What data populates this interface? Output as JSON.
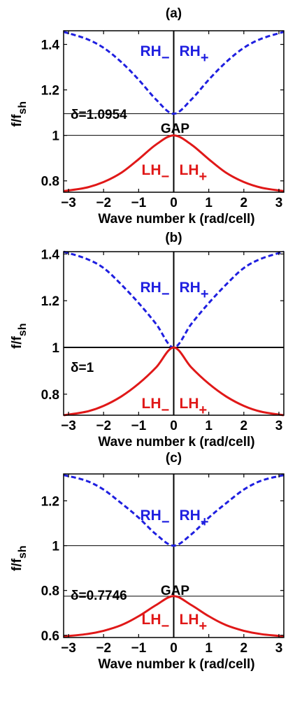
{
  "chart_data": [
    {
      "type": "line",
      "panel_label": "(a)",
      "xlabel": "Wave number k (rad/cell)",
      "ylabel": "f/f",
      "ylabel_sub": "sh",
      "xlim": [
        -3.14,
        3.14
      ],
      "ylim": [
        0.75,
        1.46
      ],
      "xticks": [
        -3,
        -2,
        -1,
        0,
        1,
        2,
        3
      ],
      "yticks": [
        0.8,
        1.0,
        1.2,
        1.4
      ],
      "ytick_labels": [
        "0.8",
        "1",
        "1.2",
        "1.4"
      ],
      "hlines": [
        1.0954,
        1.0
      ],
      "delta_label": "δ=1.0954",
      "gap_label": "GAP",
      "band_labels": {
        "rh_left": "RH",
        "rh_left_sub": "−",
        "rh_right": "RH",
        "rh_right_sub": "+",
        "lh_left": "LH",
        "lh_left_sub": "−",
        "lh_right": "LH",
        "lh_right_sub": "+"
      },
      "series": [
        {
          "name": "RH",
          "color": "#1f1fe0",
          "style": "dashed",
          "x": [
            -3.14,
            -2.5,
            -2.0,
            -1.5,
            -1.0,
            -0.5,
            0,
            0.5,
            1.0,
            1.5,
            2.0,
            2.5,
            3.14
          ],
          "y": [
            1.455,
            1.425,
            1.385,
            1.323,
            1.245,
            1.157,
            1.095,
            1.157,
            1.245,
            1.323,
            1.385,
            1.425,
            1.455
          ]
        },
        {
          "name": "LH",
          "color": "#e01818",
          "style": "solid",
          "x": [
            -3.14,
            -2.5,
            -2.0,
            -1.5,
            -1.0,
            -0.5,
            0,
            0.5,
            1.0,
            1.5,
            2.0,
            2.5,
            3.14
          ],
          "y": [
            0.755,
            0.77,
            0.795,
            0.835,
            0.895,
            0.96,
            1.0,
            0.96,
            0.895,
            0.835,
            0.795,
            0.77,
            0.755
          ]
        }
      ]
    },
    {
      "type": "line",
      "panel_label": "(b)",
      "xlabel": "Wave number k (rad/cell)",
      "ylabel": "f/f",
      "ylabel_sub": "sh",
      "xlim": [
        -3.14,
        3.14
      ],
      "ylim": [
        0.71,
        1.41
      ],
      "xticks": [
        -3,
        -2,
        -1,
        0,
        1,
        2,
        3
      ],
      "yticks": [
        0.8,
        1.0,
        1.2,
        1.4
      ],
      "ytick_labels": [
        "0.8",
        "1",
        "1.2",
        "1.4"
      ],
      "hlines": [
        1.0
      ],
      "delta_label": "δ=1",
      "band_labels": {
        "rh_left": "RH",
        "rh_left_sub": "−",
        "rh_right": "RH",
        "rh_right_sub": "+",
        "lh_left": "LH",
        "lh_left_sub": "−",
        "lh_right": "LH",
        "lh_right_sub": "+"
      },
      "series": [
        {
          "name": "RH",
          "color": "#1f1fe0",
          "style": "dashed",
          "x": [
            -3.14,
            -2.5,
            -2.0,
            -1.5,
            -1.0,
            -0.5,
            0,
            0.5,
            1.0,
            1.5,
            2.0,
            2.5,
            3.14
          ],
          "y": [
            1.41,
            1.38,
            1.34,
            1.27,
            1.19,
            1.1,
            1.0,
            1.1,
            1.19,
            1.27,
            1.34,
            1.38,
            1.41
          ]
        },
        {
          "name": "LH",
          "color": "#e01818",
          "style": "solid",
          "x": [
            -3.14,
            -2.5,
            -2.0,
            -1.5,
            -1.0,
            -0.5,
            0,
            0.5,
            1.0,
            1.5,
            2.0,
            2.5,
            3.14
          ],
          "y": [
            0.71,
            0.725,
            0.75,
            0.79,
            0.845,
            0.915,
            1.0,
            0.915,
            0.845,
            0.79,
            0.75,
            0.725,
            0.71
          ]
        }
      ]
    },
    {
      "type": "line",
      "panel_label": "(c)",
      "xlabel": "Wave number k (rad/cell)",
      "ylabel": "f/f",
      "ylabel_sub": "sh",
      "xlim": [
        -3.14,
        3.14
      ],
      "ylim": [
        0.59,
        1.32
      ],
      "xticks": [
        -3,
        -2,
        -1,
        0,
        1,
        2,
        3
      ],
      "yticks": [
        0.6,
        0.8,
        1.0,
        1.2
      ],
      "ytick_labels": [
        "0.6",
        "0.8",
        "1",
        "1.2"
      ],
      "hlines": [
        0.7746,
        1.0
      ],
      "delta_label": "δ=0.7746",
      "gap_label": "GAP",
      "band_labels": {
        "rh_left": "RH",
        "rh_left_sub": "−",
        "rh_right": "RH",
        "rh_right_sub": "+",
        "lh_left": "LH",
        "lh_left_sub": "−",
        "lh_right": "LH",
        "lh_right_sub": "+"
      },
      "series": [
        {
          "name": "RH",
          "color": "#1f1fe0",
          "style": "dashed",
          "x": [
            -3.14,
            -2.5,
            -2.0,
            -1.5,
            -1.0,
            -0.5,
            0,
            0.5,
            1.0,
            1.5,
            2.0,
            2.5,
            3.14
          ],
          "y": [
            1.315,
            1.29,
            1.25,
            1.19,
            1.125,
            1.05,
            1.0,
            1.05,
            1.125,
            1.19,
            1.25,
            1.29,
            1.315
          ]
        },
        {
          "name": "LH",
          "color": "#e01818",
          "style": "solid",
          "x": [
            -3.14,
            -2.5,
            -2.0,
            -1.5,
            -1.0,
            -0.5,
            0,
            0.5,
            1.0,
            1.5,
            2.0,
            2.5,
            3.14
          ],
          "y": [
            0.595,
            0.605,
            0.62,
            0.645,
            0.685,
            0.735,
            0.775,
            0.735,
            0.685,
            0.645,
            0.62,
            0.605,
            0.595
          ]
        }
      ]
    }
  ]
}
